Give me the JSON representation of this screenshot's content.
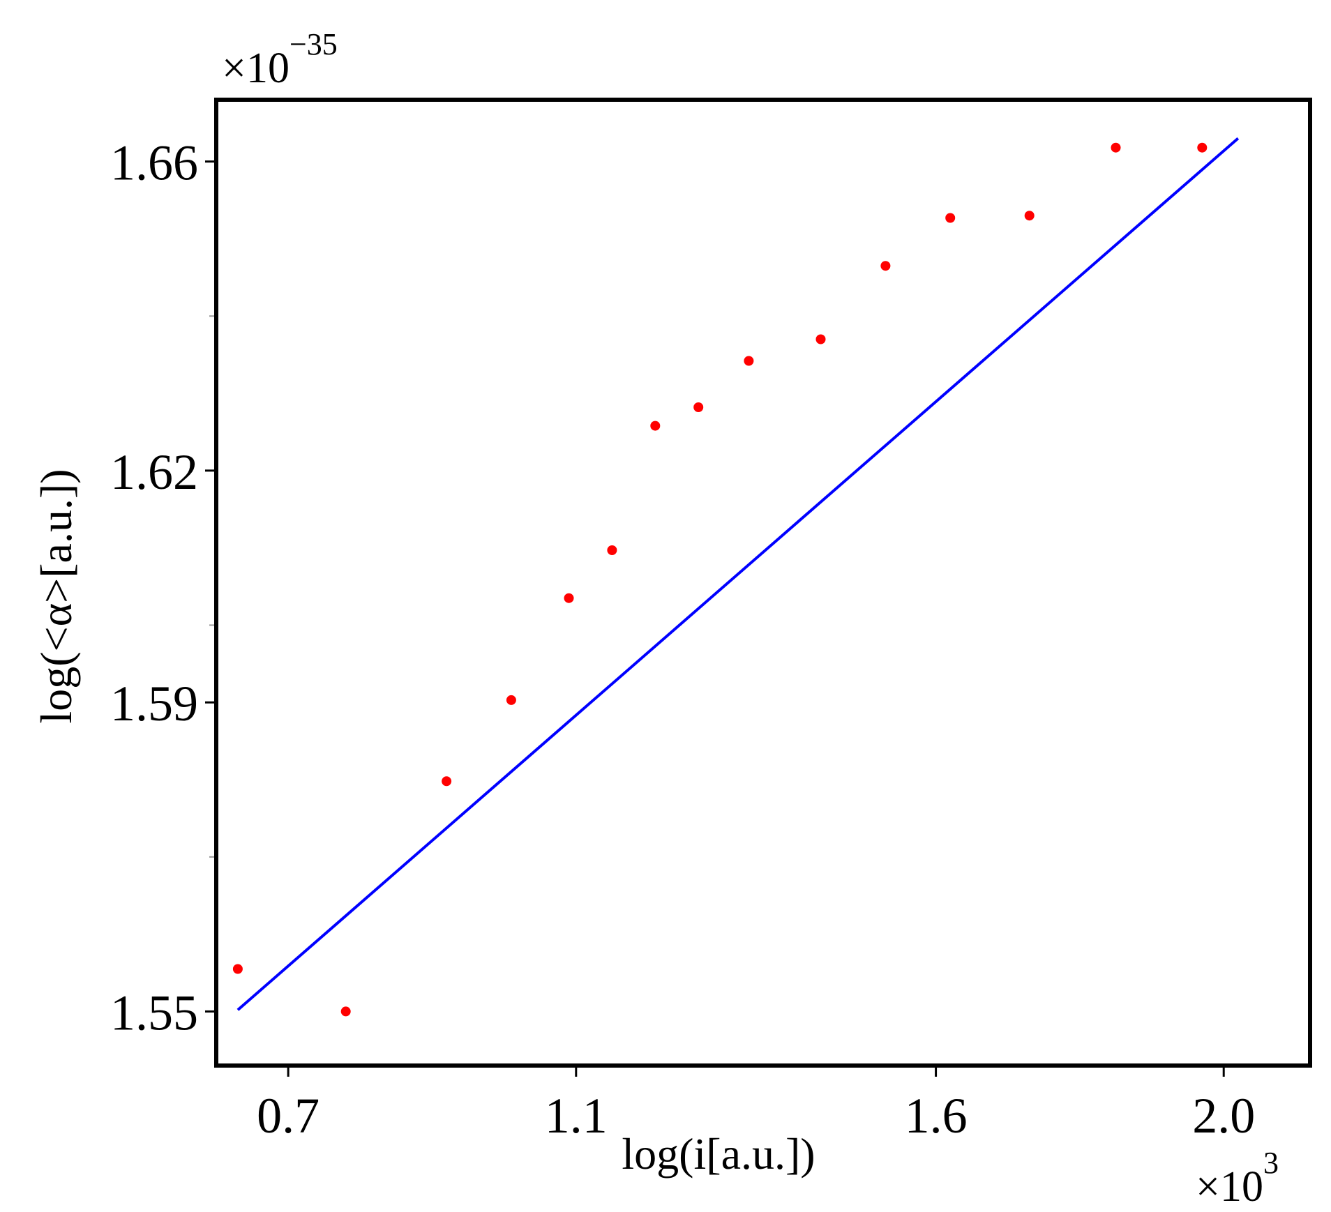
{
  "chart_data": {
    "type": "scatter",
    "title": "",
    "xlabel": "log(i[a.u.])",
    "ylabel": "log(<α>[a.u.])",
    "x_multiplier": {
      "base": "×10",
      "exponent": "3"
    },
    "y_multiplier": {
      "base": "×10",
      "exponent": "−35"
    },
    "x_ticks": [
      {
        "value": 0.7,
        "label": "0.7"
      },
      {
        "value": 1.1,
        "label": "1.1"
      },
      {
        "value": 1.6,
        "label": "1.6"
      },
      {
        "value": 2.0,
        "label": "2.0"
      }
    ],
    "y_ticks": [
      {
        "value": 1.55,
        "label": "1.55"
      },
      {
        "value": 1.59,
        "label": "1.59"
      },
      {
        "value": 1.62,
        "label": "1.62"
      },
      {
        "value": 1.66,
        "label": "1.66"
      }
    ],
    "y_minor_ticks": [
      1.57,
      1.6,
      1.64
    ],
    "xlim": [
      0.6,
      2.12
    ],
    "ylim": [
      1.543,
      1.668
    ],
    "grid": false,
    "legend": "none",
    "series": [
      {
        "kind": "points",
        "color": "#ff0000",
        "x": [
          0.63,
          0.78,
          0.92,
          1.01,
          1.09,
          1.15,
          1.21,
          1.27,
          1.34,
          1.44,
          1.53,
          1.62,
          1.73,
          1.85,
          1.97
        ],
        "y": [
          1.5555,
          1.55,
          1.5798,
          1.5903,
          1.6035,
          1.6097,
          1.6258,
          1.6282,
          1.6342,
          1.637,
          1.6465,
          1.6527,
          1.653,
          1.6618,
          1.6618
        ]
      },
      {
        "kind": "fit-line",
        "color": "#0000ff",
        "x": [
          0.63,
          2.02
        ],
        "y": [
          1.5502,
          1.663
        ]
      }
    ]
  }
}
